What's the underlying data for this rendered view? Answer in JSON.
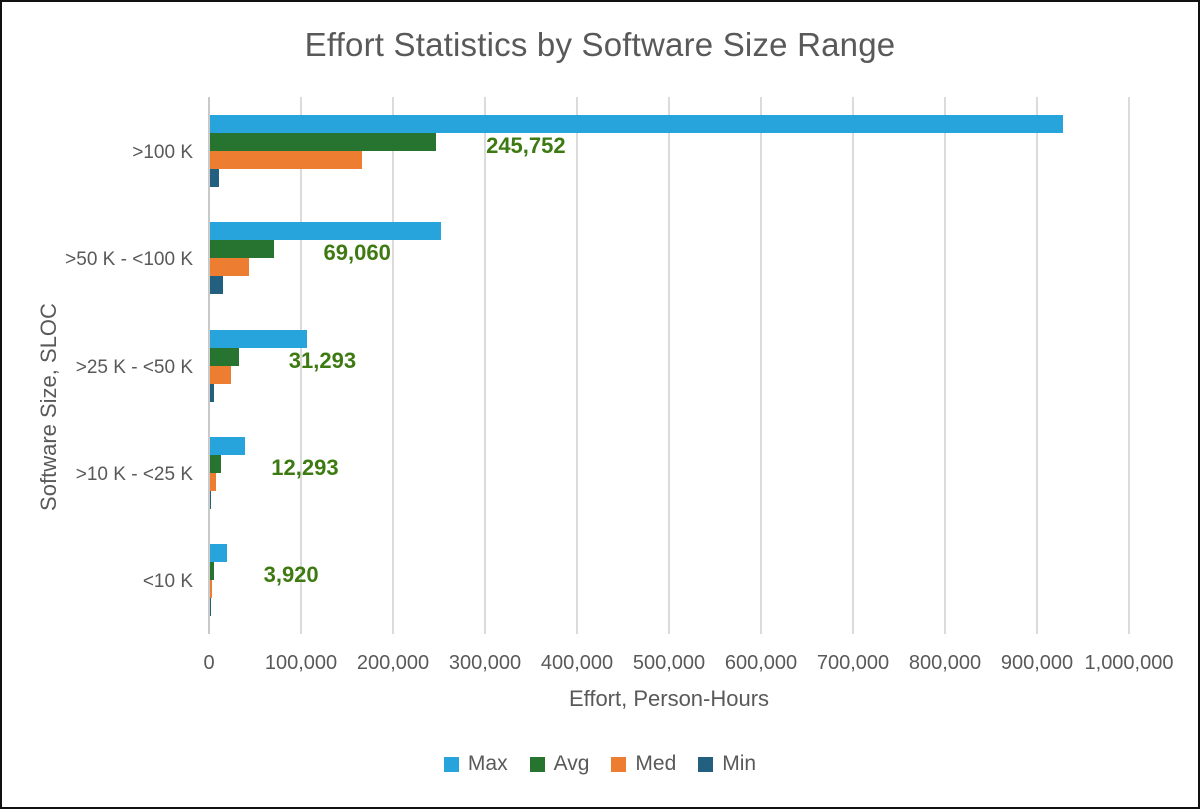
{
  "chart_data": {
    "type": "bar",
    "orientation": "horizontal",
    "title": "Effort Statistics by Software Size Range",
    "xlabel": "Effort, Person-Hours",
    "ylabel": "Software Size, SLOC",
    "categories": [
      ">100 K",
      ">50 K - <100 K",
      ">25 K - <50 K",
      ">10 K - <25 K",
      "<10 K"
    ],
    "series": [
      {
        "name": "Max",
        "color": "#27A4DB",
        "values": [
          927000,
          251000,
          105000,
          38000,
          18500
        ]
      },
      {
        "name": "Avg",
        "color": "#277431",
        "values": [
          245752,
          69060,
          31293,
          12293,
          3920
        ],
        "data_labels": [
          "245,752",
          "69,060",
          "31,293",
          "12,293",
          "3,920"
        ]
      },
      {
        "name": "Med",
        "color": "#ED7D31",
        "values": [
          165000,
          42000,
          23000,
          6500,
          2000
        ]
      },
      {
        "name": "Min",
        "color": "#23607F",
        "values": [
          9800,
          14000,
          4400,
          400,
          200
        ]
      }
    ],
    "xlim": [
      0,
      1000000
    ],
    "x_ticks": [
      "0",
      "100,000",
      "200,000",
      "300,000",
      "400,000",
      "500,000",
      "600,000",
      "700,000",
      "800,000",
      "900,000",
      "1,000,000"
    ],
    "grid": true,
    "legend_position": "bottom",
    "data_label_color": "#3E7A12",
    "text_color": "#595959",
    "gridline_color": "#DBDBDB"
  }
}
